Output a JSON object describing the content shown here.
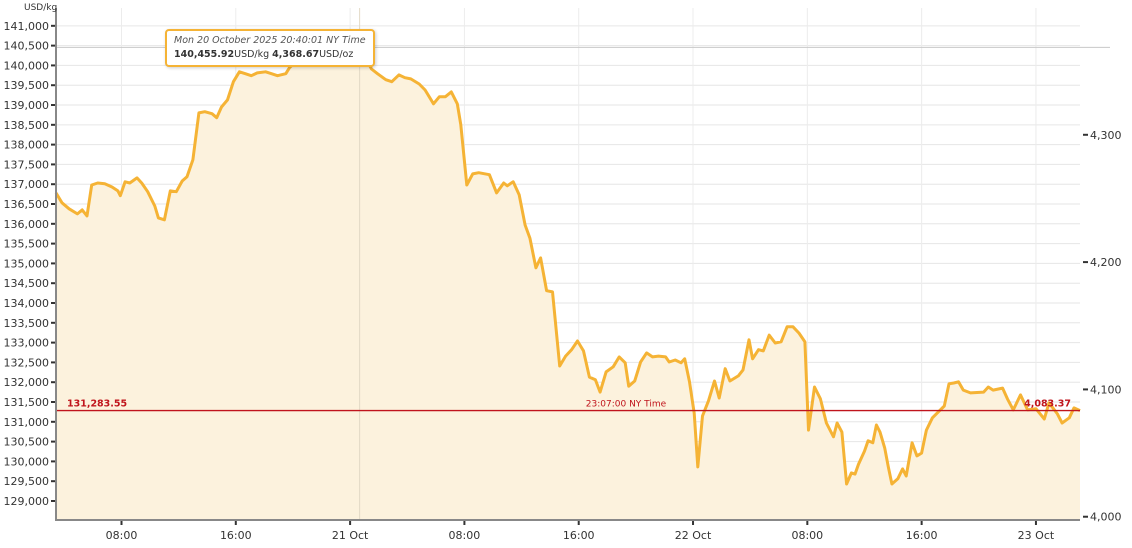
{
  "chart_data": {
    "type": "area",
    "ylabel": "USD/kg",
    "ylim": [
      128520,
      141450
    ],
    "xlim": [
      "20 Oct 03:25",
      "23 Oct 03:05"
    ],
    "grid": true,
    "colors": {
      "line": "#f5b335",
      "fill": "#fcf2dd",
      "current": "#c0141c",
      "grid": "#e6e6e6"
    },
    "y_ticks": [
      "129,000",
      "129,500",
      "130,000",
      "130,500",
      "131,000",
      "131,500",
      "132,000",
      "132,500",
      "133,000",
      "133,500",
      "134,000",
      "134,500",
      "135,000",
      "135,500",
      "136,000",
      "136,500",
      "137,000",
      "137,500",
      "138,000",
      "138,500",
      "139,000",
      "139,500",
      "140,000",
      "140,500",
      "141,000"
    ],
    "y_right_unit": "USD/oz",
    "y_right_ticks": [
      "4,000",
      "4,100",
      "4,200",
      "4,300"
    ],
    "oz_per_kg": 32.1507,
    "x_ticks": [
      {
        "t": "20 Oct 08:00",
        "label": "08:00"
      },
      {
        "t": "20 Oct 16:00",
        "label": "16:00"
      },
      {
        "t": "21 Oct 00:00",
        "label": "21 Oct"
      },
      {
        "t": "21 Oct 08:00",
        "label": "08:00"
      },
      {
        "t": "21 Oct 16:00",
        "label": "16:00"
      },
      {
        "t": "22 Oct 00:00",
        "label": "22 Oct"
      },
      {
        "t": "22 Oct 08:00",
        "label": "08:00"
      },
      {
        "t": "22 Oct 16:00",
        "label": "16:00"
      },
      {
        "t": "23 Oct 00:00",
        "label": "23 Oct"
      }
    ],
    "series": [
      {
        "points": [
          [
            "20 Oct 03:25",
            136780
          ],
          [
            "20 Oct 03:50",
            136530
          ],
          [
            "20 Oct 04:20",
            136380
          ],
          [
            "20 Oct 04:55",
            136250
          ],
          [
            "20 Oct 05:15",
            136350
          ],
          [
            "20 Oct 05:35",
            136200
          ],
          [
            "20 Oct 05:55",
            136980
          ],
          [
            "20 Oct 06:20",
            137030
          ],
          [
            "20 Oct 06:50",
            137010
          ],
          [
            "20 Oct 07:20",
            136930
          ],
          [
            "20 Oct 07:45",
            136830
          ],
          [
            "20 Oct 07:55",
            136710
          ],
          [
            "20 Oct 08:15",
            137060
          ],
          [
            "20 Oct 08:35",
            137030
          ],
          [
            "20 Oct 09:05",
            137160
          ],
          [
            "20 Oct 09:25",
            137030
          ],
          [
            "20 Oct 09:50",
            136810
          ],
          [
            "20 Oct 10:20",
            136450
          ],
          [
            "20 Oct 10:35",
            136150
          ],
          [
            "20 Oct 11:00",
            136100
          ],
          [
            "20 Oct 11:25",
            136830
          ],
          [
            "20 Oct 11:50",
            136810
          ],
          [
            "20 Oct 12:15",
            137080
          ],
          [
            "20 Oct 12:35",
            137190
          ],
          [
            "20 Oct 13:00",
            137620
          ],
          [
            "20 Oct 13:25",
            138800
          ],
          [
            "20 Oct 13:50",
            138830
          ],
          [
            "20 Oct 14:20",
            138780
          ],
          [
            "20 Oct 14:40",
            138680
          ],
          [
            "20 Oct 15:00",
            138950
          ],
          [
            "20 Oct 15:25",
            139130
          ],
          [
            "20 Oct 15:50",
            139590
          ],
          [
            "20 Oct 16:15",
            139840
          ],
          [
            "20 Oct 16:40",
            139790
          ],
          [
            "20 Oct 17:05",
            139740
          ],
          [
            "20 Oct 17:30",
            139810
          ],
          [
            "20 Oct 18:05",
            139840
          ],
          [
            "20 Oct 18:30",
            139790
          ],
          [
            "20 Oct 18:55",
            139740
          ],
          [
            "20 Oct 19:30",
            139790
          ],
          [
            "20 Oct 19:45",
            139940
          ],
          [
            "20 Oct 20:10",
            140090
          ],
          [
            "20 Oct 20:35",
            140190
          ],
          [
            "20 Oct 21:15",
            140220
          ],
          [
            "20 Oct 22:10",
            140190
          ],
          [
            "20 Oct 22:55",
            140240
          ],
          [
            "20 Oct 23:30",
            140140
          ],
          [
            "21 Oct 00:05",
            140170
          ],
          [
            "21 Oct 00:40",
            140455.92
          ],
          [
            "21 Oct 01:00",
            140240
          ],
          [
            "21 Oct 01:30",
            139910
          ],
          [
            "21 Oct 01:55",
            139790
          ],
          [
            "21 Oct 02:30",
            139640
          ],
          [
            "21 Oct 02:55",
            139590
          ],
          [
            "21 Oct 03:25",
            139760
          ],
          [
            "21 Oct 03:50",
            139690
          ],
          [
            "21 Oct 04:15",
            139660
          ],
          [
            "21 Oct 04:50",
            139530
          ],
          [
            "21 Oct 05:15",
            139380
          ],
          [
            "21 Oct 05:50",
            139030
          ],
          [
            "21 Oct 06:15",
            139210
          ],
          [
            "21 Oct 06:40",
            139210
          ],
          [
            "21 Oct 07:05",
            139330
          ],
          [
            "21 Oct 07:30",
            139030
          ],
          [
            "21 Oct 07:45",
            138500
          ],
          [
            "21 Oct 08:10",
            136980
          ],
          [
            "21 Oct 08:35",
            137260
          ],
          [
            "21 Oct 09:00",
            137290
          ],
          [
            "21 Oct 09:45",
            137240
          ],
          [
            "21 Oct 10:15",
            136780
          ],
          [
            "21 Oct 10:45",
            137030
          ],
          [
            "21 Oct 11:00",
            136960
          ],
          [
            "21 Oct 11:25",
            137060
          ],
          [
            "21 Oct 11:50",
            136730
          ],
          [
            "21 Oct 12:15",
            135970
          ],
          [
            "21 Oct 12:35",
            135640
          ],
          [
            "21 Oct 13:00",
            134890
          ],
          [
            "21 Oct 13:20",
            135140
          ],
          [
            "21 Oct 13:45",
            134310
          ],
          [
            "21 Oct 14:10",
            134280
          ],
          [
            "21 Oct 14:40",
            132410
          ],
          [
            "21 Oct 15:05",
            132660
          ],
          [
            "21 Oct 15:30",
            132820
          ],
          [
            "21 Oct 15:55",
            133040
          ],
          [
            "21 Oct 16:20",
            132790
          ],
          [
            "21 Oct 16:45",
            132130
          ],
          [
            "21 Oct 17:10",
            132060
          ],
          [
            "21 Oct 17:30",
            131750
          ],
          [
            "21 Oct 17:55",
            132260
          ],
          [
            "21 Oct 18:25",
            132390
          ],
          [
            "21 Oct 18:50",
            132640
          ],
          [
            "21 Oct 19:15",
            132490
          ],
          [
            "21 Oct 19:30",
            131900
          ],
          [
            "21 Oct 19:55",
            132030
          ],
          [
            "21 Oct 20:20",
            132510
          ],
          [
            "21 Oct 20:45",
            132740
          ],
          [
            "21 Oct 21:10",
            132640
          ],
          [
            "21 Oct 21:35",
            132660
          ],
          [
            "21 Oct 22:05",
            132640
          ],
          [
            "21 Oct 22:20",
            132510
          ],
          [
            "21 Oct 22:45",
            132560
          ],
          [
            "21 Oct 23:10",
            132490
          ],
          [
            "21 Oct 23:25",
            132590
          ],
          [
            "21 Oct 23:45",
            132010
          ],
          [
            "22 Oct 00:05",
            131220
          ],
          [
            "22 Oct 00:20",
            129860
          ],
          [
            "22 Oct 00:40",
            131150
          ],
          [
            "22 Oct 01:05",
            131530
          ],
          [
            "22 Oct 01:30",
            132030
          ],
          [
            "22 Oct 01:50",
            131600
          ],
          [
            "22 Oct 02:15",
            132340
          ],
          [
            "22 Oct 02:35",
            132030
          ],
          [
            "22 Oct 03:10",
            132160
          ],
          [
            "22 Oct 03:30",
            132310
          ],
          [
            "22 Oct 03:55",
            133070
          ],
          [
            "22 Oct 04:10",
            132590
          ],
          [
            "22 Oct 04:35",
            132820
          ],
          [
            "22 Oct 04:55",
            132790
          ],
          [
            "22 Oct 05:20",
            133190
          ],
          [
            "22 Oct 05:45",
            132990
          ],
          [
            "22 Oct 06:10",
            133020
          ],
          [
            "22 Oct 06:35",
            133400
          ],
          [
            "22 Oct 07:00",
            133400
          ],
          [
            "22 Oct 07:25",
            133240
          ],
          [
            "22 Oct 07:50",
            133020
          ],
          [
            "22 Oct 08:05",
            130790
          ],
          [
            "22 Oct 08:30",
            131880
          ],
          [
            "22 Oct 08:55",
            131580
          ],
          [
            "22 Oct 09:20",
            130970
          ],
          [
            "22 Oct 09:50",
            130620
          ],
          [
            "22 Oct 10:05",
            130970
          ],
          [
            "22 Oct 10:25",
            130740
          ],
          [
            "22 Oct 10:45",
            129430
          ],
          [
            "22 Oct 11:05",
            129710
          ],
          [
            "22 Oct 11:20",
            129680
          ],
          [
            "22 Oct 11:35",
            129930
          ],
          [
            "22 Oct 12:00",
            130260
          ],
          [
            "22 Oct 12:15",
            130520
          ],
          [
            "22 Oct 12:35",
            130470
          ],
          [
            "22 Oct 12:50",
            130920
          ],
          [
            "22 Oct 13:05",
            130740
          ],
          [
            "22 Oct 13:25",
            130340
          ],
          [
            "22 Oct 13:40",
            129860
          ],
          [
            "22 Oct 13:55",
            129430
          ],
          [
            "22 Oct 14:20",
            129560
          ],
          [
            "22 Oct 14:40",
            129810
          ],
          [
            "22 Oct 14:55",
            129630
          ],
          [
            "22 Oct 15:20",
            130470
          ],
          [
            "22 Oct 15:40",
            130140
          ],
          [
            "22 Oct 16:00",
            130210
          ],
          [
            "22 Oct 16:20",
            130790
          ],
          [
            "22 Oct 16:45",
            131100
          ],
          [
            "22 Oct 17:10",
            131250
          ],
          [
            "22 Oct 17:35",
            131400
          ],
          [
            "22 Oct 17:55",
            131960
          ],
          [
            "22 Oct 18:15",
            131980
          ],
          [
            "22 Oct 18:35",
            132010
          ],
          [
            "22 Oct 18:55",
            131800
          ],
          [
            "22 Oct 19:25",
            131730
          ],
          [
            "22 Oct 20:20",
            131750
          ],
          [
            "22 Oct 20:40",
            131880
          ],
          [
            "22 Oct 21:00",
            131800
          ],
          [
            "22 Oct 21:25",
            131830
          ],
          [
            "22 Oct 21:40",
            131850
          ],
          [
            "22 Oct 22:00",
            131580
          ],
          [
            "22 Oct 22:25",
            131300
          ],
          [
            "22 Oct 22:55",
            131680
          ],
          [
            "22 Oct 23:25",
            131300
          ],
          [
            "23 Oct 00:00",
            131330
          ],
          [
            "23 Oct 00:35",
            131070
          ],
          [
            "23 Oct 00:55",
            131480
          ],
          [
            "23 Oct 01:30",
            131200
          ],
          [
            "23 Oct 01:50",
            130970
          ],
          [
            "23 Oct 02:20",
            131100
          ],
          [
            "23 Oct 02:40",
            131350
          ],
          [
            "23 Oct 03:05",
            131283.55
          ]
        ]
      }
    ],
    "current": {
      "value": 131283.55,
      "label_left": "131,283.55",
      "time_label": "23:07:00 NY Time",
      "label_right": "4,083.37"
    },
    "tooltip": {
      "point_time": "21 Oct 00:40",
      "date": "Mon 20 October 2025 20:40:01 NY Time",
      "kg_value": "140,455.92",
      "kg_unit": "USD/kg",
      "oz_value": "4,368.67",
      "oz_unit": "USD/oz"
    }
  }
}
